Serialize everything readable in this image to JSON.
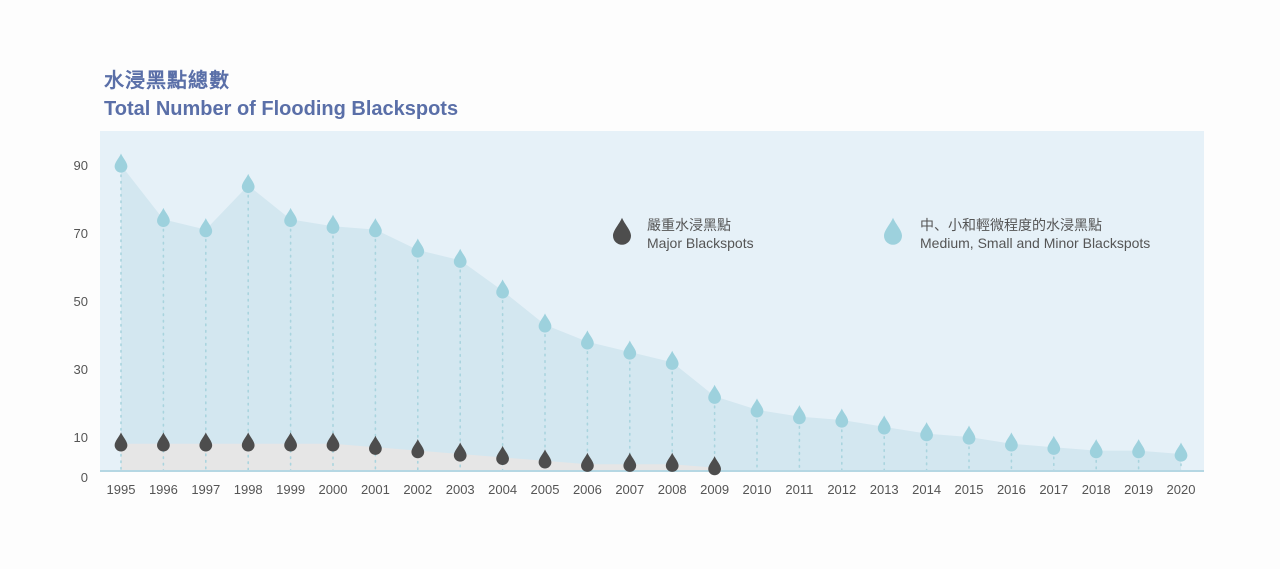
{
  "title": {
    "zh": "水浸黑點總數",
    "en": "Total Number of Flooding Blackspots"
  },
  "colors": {
    "plot_bg": "#e6f1f8",
    "medium_area": "#d3e7f0",
    "major_area": "#e6e6e6",
    "medium_drop": "#9dd1dd",
    "major_drop": "#4d4d4d",
    "dotted_line": "#a9d4de",
    "axis": "#b5d7e3"
  },
  "legend": [
    {
      "zh": "嚴重水浸黑點",
      "en": "Major Blackspots",
      "icon": "dark-drop-icon"
    },
    {
      "zh": "中、小和輕微程度的水浸黑點",
      "en": "Medium, Small and Minor Blackspots",
      "icon": "light-drop-icon"
    }
  ],
  "chart_data": {
    "type": "area",
    "title": "Total Number of Flooding Blackspots",
    "categories": [
      "1995",
      "1996",
      "1997",
      "1998",
      "1999",
      "2000",
      "2001",
      "2002",
      "2003",
      "2004",
      "2005",
      "2006",
      "2007",
      "2008",
      "2009",
      "2010",
      "2011",
      "2012",
      "2013",
      "2014",
      "2015",
      "2016",
      "2017",
      "2018",
      "2019",
      "2020"
    ],
    "y_ticks": [
      0,
      10,
      30,
      50,
      70,
      90
    ],
    "ylim": [
      0,
      100
    ],
    "series": [
      {
        "name": "Medium, Small and Minor Blackspots",
        "values": [
          90,
          74,
          71,
          84,
          74,
          72,
          71,
          65,
          62,
          53,
          43,
          38,
          35,
          32,
          22,
          18,
          16,
          15,
          13,
          11,
          10,
          8,
          7,
          6,
          6,
          5
        ]
      },
      {
        "name": "Major Blackspots",
        "values": [
          8,
          8,
          8,
          8,
          8,
          8,
          7,
          6,
          5,
          4,
          3,
          2,
          2,
          2,
          1,
          null,
          null,
          null,
          null,
          null,
          null,
          null,
          null,
          null,
          null,
          null
        ]
      }
    ],
    "grid": false
  }
}
